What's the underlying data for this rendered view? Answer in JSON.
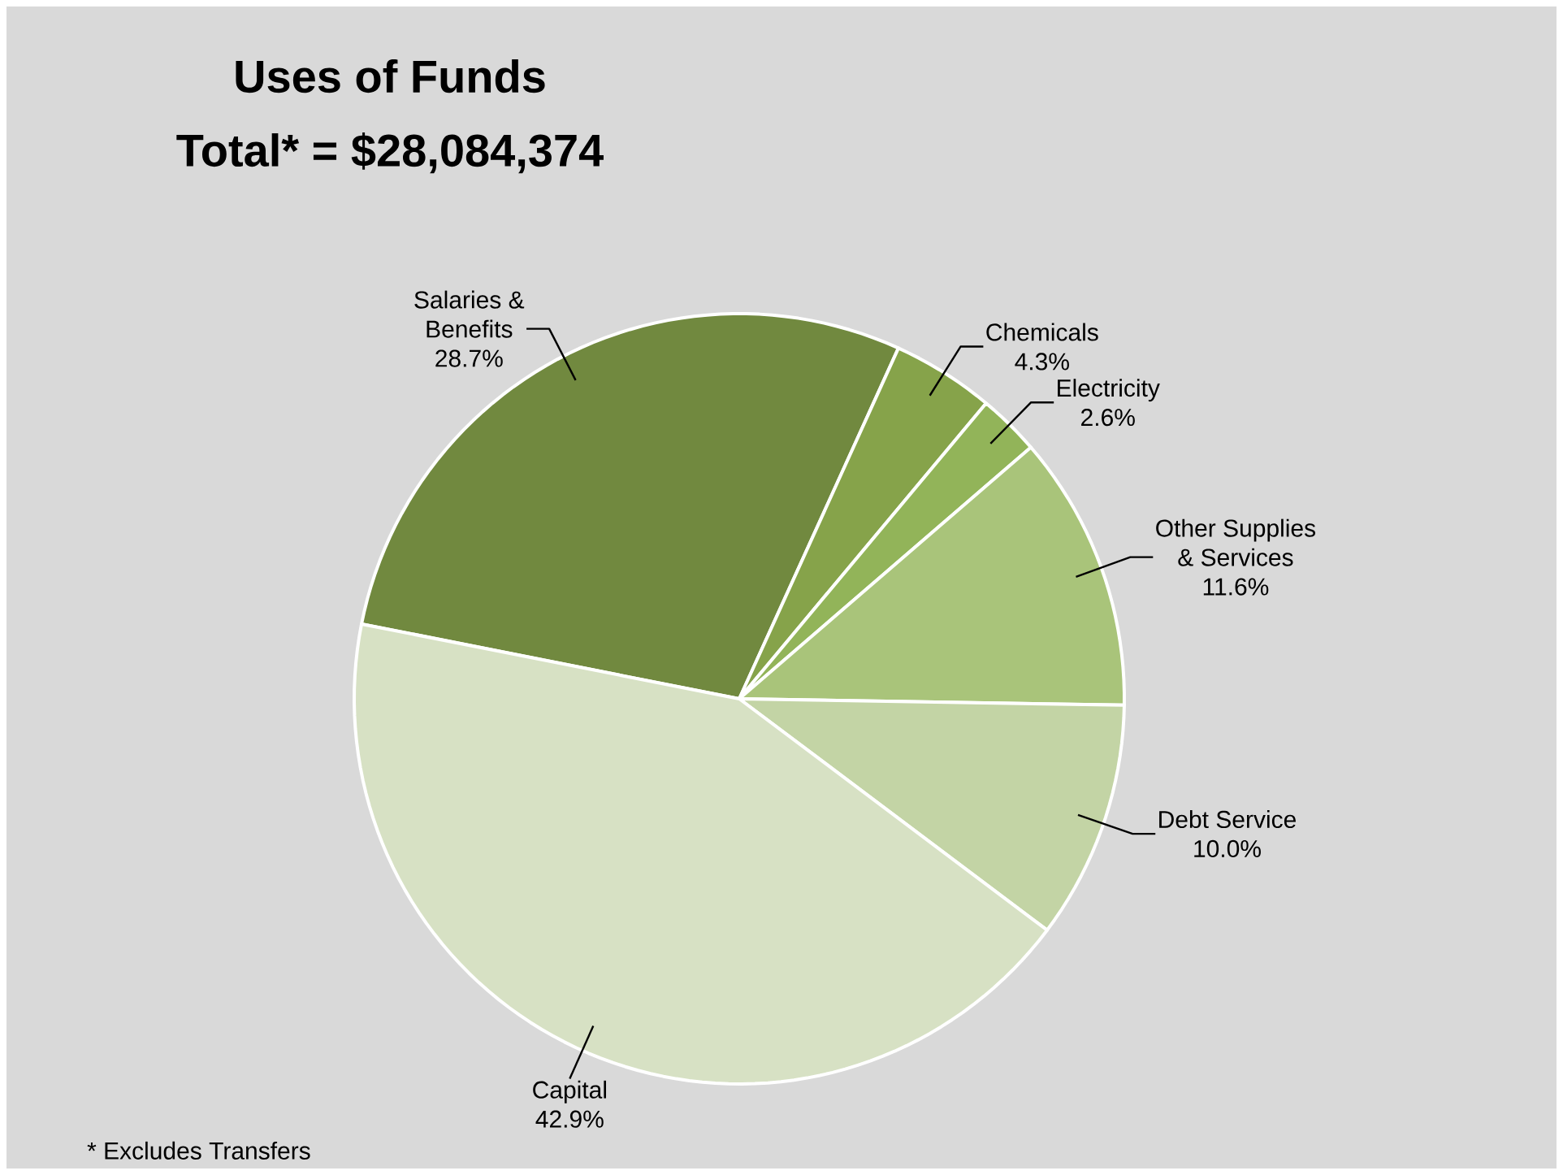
{
  "chart_data": {
    "type": "pie",
    "title": "Uses of Funds",
    "subtitle": "Total* = $28,084,374",
    "categories": [
      "Salaries & Benefits",
      "Chemicals",
      "Electricity",
      "Other Supplies & Services",
      "Debt Service",
      "Capital"
    ],
    "values": [
      28.7,
      4.3,
      2.6,
      11.6,
      10.0,
      42.9
    ],
    "value_labels": [
      "28.7%",
      "4.3%",
      "2.6%",
      "11.6%",
      "10.0%",
      "42.9%"
    ],
    "colors": [
      "#71893f",
      "#86a34a",
      "#92b459",
      "#a9c47a",
      "#c3d4a5",
      "#d7e1c4"
    ],
    "annotations": [
      "* Excludes Transfers"
    ]
  }
}
